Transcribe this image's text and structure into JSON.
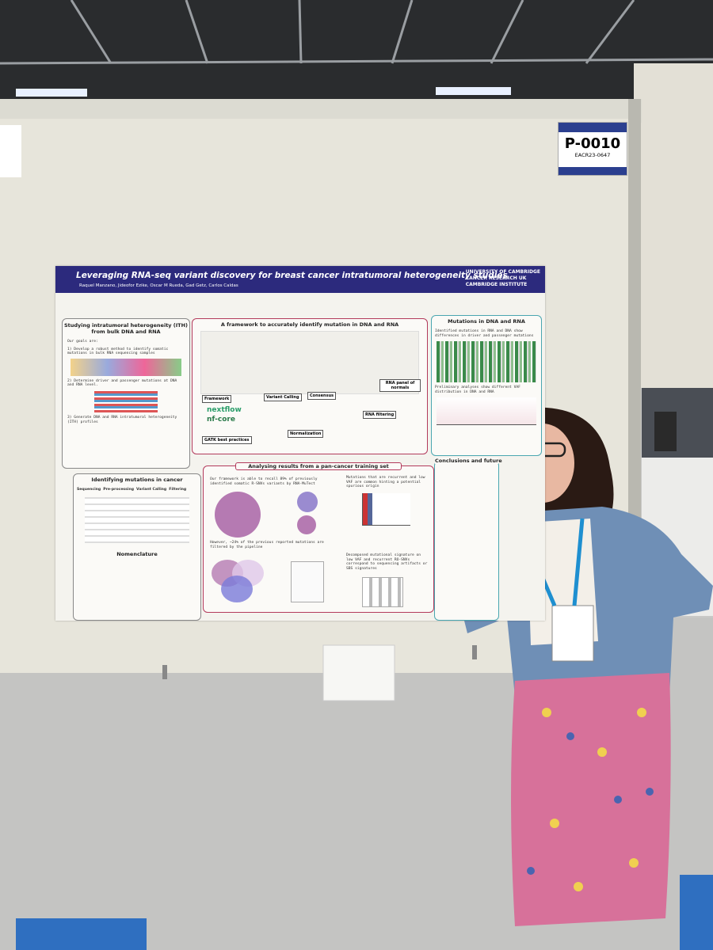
{
  "board": {
    "number": "P-0010",
    "abstract": "EACR23-0647"
  },
  "poster": {
    "title": "Leveraging RNA-seq variant discovery for breast cancer intratumoral heterogeneity studies",
    "authors": "Raquel Manzano, Jideofor Ezike, Oscar M Rueda, Gad Getz, Carlos Caldas",
    "logos": [
      "UNIVERSITY OF CAMBRIDGE",
      "CANCER RESEARCH UK",
      "CAMBRIDGE INSTITUTE"
    ],
    "sections": {
      "ith": {
        "title": "Studying intratumoral heterogeneity (ITH) from bulk DNA and RNA",
        "intro": "Our goals are:",
        "goals": [
          "1) Develop a robust method to identify somatic mutations in bulk RNA sequencing samples",
          "2) Determine driver and passenger mutations at DNA and RNA level.",
          "3) Generate DNA and RNA intratumoral heterogeneity (ITH) profiles"
        ]
      },
      "framework": {
        "title": "A framework to accurately identify mutation in DNA and RNA",
        "labels": [
          "Framework",
          "Variant Calling",
          "Consensus",
          "RNA panel of normals",
          "GATK best practices",
          "Normalization",
          "RNA filtering"
        ],
        "tools": [
          "nextflow",
          "nf-core"
        ]
      },
      "mutations": {
        "title": "Mutations in DNA and RNA",
        "texts": [
          "Identified mutations in RNA and DNA show differences in driver and passenger mutations",
          "Preliminary analyses show different VAF distribution in DNA and RNA"
        ]
      },
      "identifying": {
        "title": "Identifying mutations in cancer",
        "steps": [
          "Sequencing",
          "Pre-processing",
          "Variant Calling",
          "Filtering"
        ],
        "nomenclature": "Nomenclature"
      },
      "analysing": {
        "title": "Analysing results from a pan-cancer training set",
        "texts": [
          "Our framework is able to recall 89% of previously identified somatic R-SNVs variants by RNA-MuTect",
          "However, ~24% of the previous reported mutations are filtered by the pipeline",
          "Mutations that are recurrent and low VAF are common hinting a potential spurious origin",
          "Decomposed mutational signature on low VAF and recurrent RO-SNVs correspond to sequencing artifacts or SBS signatures"
        ]
      },
      "conclusions": {
        "title": "Conclusions and future"
      }
    }
  }
}
